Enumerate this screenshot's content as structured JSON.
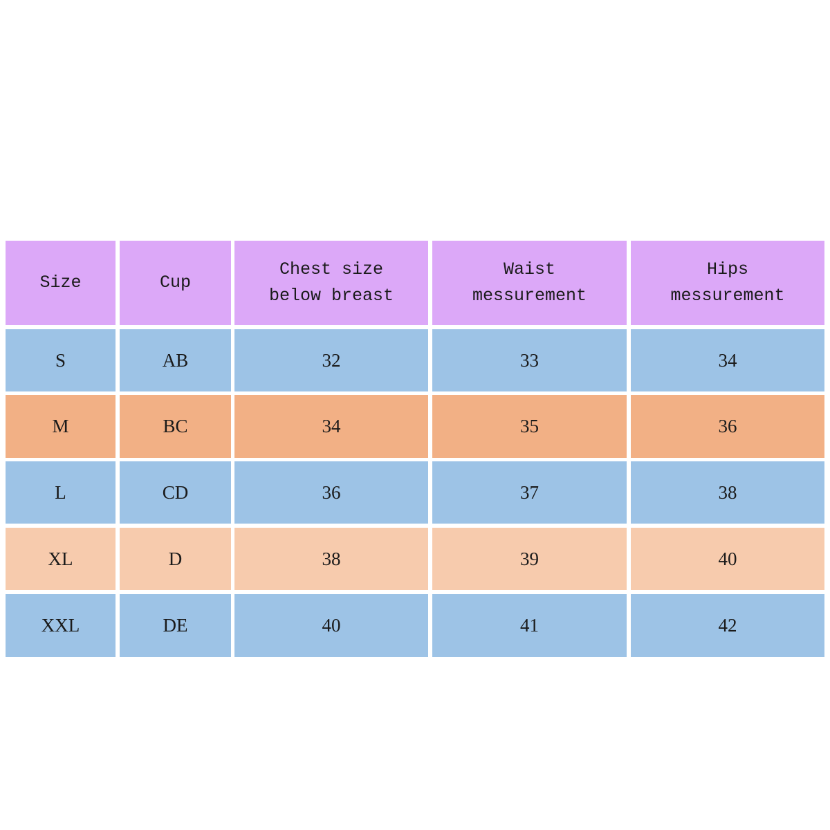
{
  "table": {
    "header": [
      [
        "Size"
      ],
      [
        "Cup"
      ],
      [
        "Chest size",
        "below breast"
      ],
      [
        "Waist",
        "messurement"
      ],
      [
        "Hips",
        "messurement"
      ]
    ],
    "rows": [
      [
        "S",
        "AB",
        32,
        33,
        34
      ],
      [
        "M",
        "BC",
        34,
        35,
        36
      ],
      [
        "L",
        "CD",
        36,
        37,
        38
      ],
      [
        "XL",
        "D",
        38,
        39,
        40
      ],
      [
        "XXL",
        "DE",
        40,
        41,
        42
      ]
    ]
  }
}
